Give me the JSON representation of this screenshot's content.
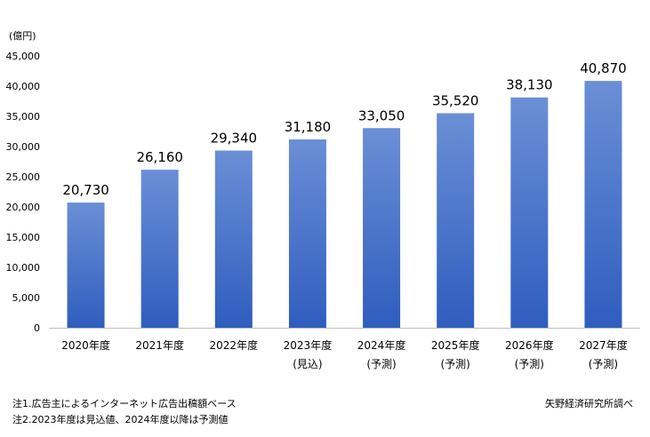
{
  "chart_data": {
    "type": "bar",
    "unit_label": "(億円)",
    "categories": [
      [
        "2020年度"
      ],
      [
        "2021年度"
      ],
      [
        "2022年度"
      ],
      [
        "2023年度",
        "(見込)"
      ],
      [
        "2024年度",
        "(予測)"
      ],
      [
        "2025年度",
        "(予測)"
      ],
      [
        "2026年度",
        "(予測)"
      ],
      [
        "2027年度",
        "(予測)"
      ]
    ],
    "values": [
      20730,
      26160,
      29340,
      31180,
      33050,
      35520,
      38130,
      40870
    ],
    "value_labels": [
      "20,730",
      "26,160",
      "29,340",
      "31,180",
      "33,050",
      "35,520",
      "38,130",
      "40,870"
    ],
    "ylim": [
      0,
      45000
    ],
    "yticks": [
      0,
      5000,
      10000,
      15000,
      20000,
      25000,
      30000,
      35000,
      40000,
      45000
    ],
    "ytick_labels": [
      "0",
      "5,000",
      "10,000",
      "15,000",
      "20,000",
      "25,000",
      "30,000",
      "35,000",
      "40,000",
      "45,000"
    ],
    "grid": false,
    "colors": {
      "bar_top": "#6b8fd6",
      "bar_bottom": "#2f5dbf",
      "axis": "#bfbfbf"
    }
  },
  "notes": {
    "note1": "注1.広告主によるインターネット広告出稿額ベース",
    "note2": "注2.2023年度は見込値、2024年度以降は予測値",
    "source": "矢野経済研究所調べ"
  }
}
